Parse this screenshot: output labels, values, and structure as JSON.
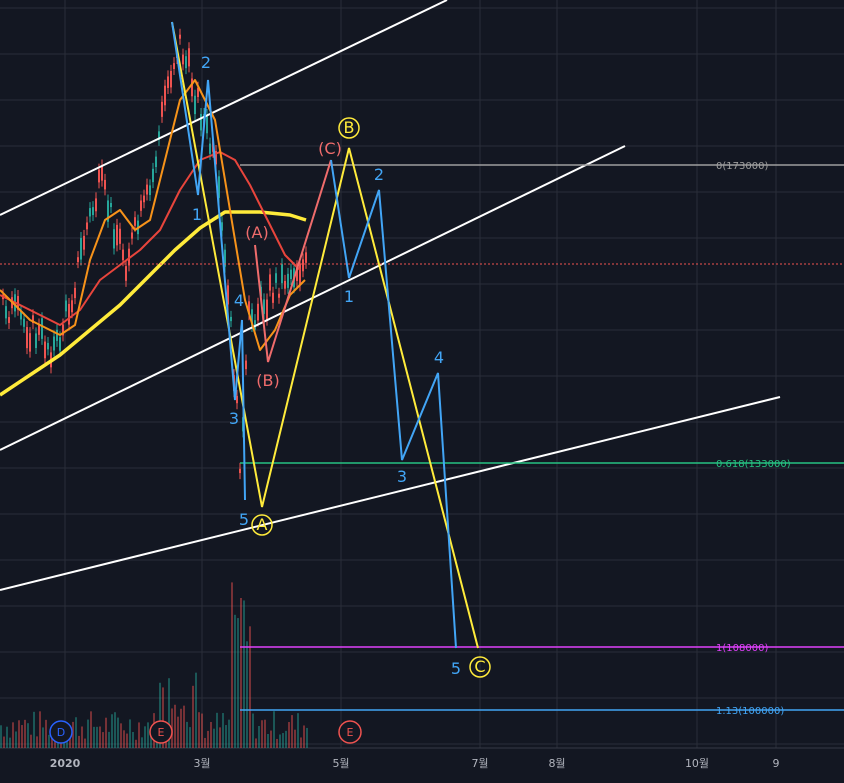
{
  "chart_data": {
    "type": "line",
    "title": "",
    "x_axis": {
      "tick_labels": [
        "2020",
        "3월",
        "5월",
        "7월",
        "8월",
        "10월",
        "9"
      ]
    },
    "colors": {
      "background": "#131722",
      "grid": "#2a2e39",
      "ma_fast": "#f7931a",
      "ma_mid": "#e8453c",
      "ma_slow": "#ffeb3b",
      "wave_abc": "#ffeb3b",
      "wave_sub": "#42a5f5",
      "wave_sub_abc": "#ef6c6c",
      "channel": "#ffffff",
      "candle_up": "#26a69a",
      "candle_down": "#ef5350"
    },
    "fib_levels": [
      {
        "label": "0(173000)",
        "color": "#9e9e9e"
      },
      {
        "label": "0.618(133000)",
        "color": "#26c281"
      },
      {
        "label": "1(108000)",
        "color": "#e040fb"
      },
      {
        "label": "1.13(100000)",
        "color": "#42a5f5"
      }
    ],
    "waves": {
      "abc": [
        {
          "label": "A",
          "color": "#ffeb3b"
        },
        {
          "label": "B",
          "color": "#ffeb3b"
        },
        {
          "label": "C",
          "color": "#ffeb3b"
        }
      ],
      "sub_abc": [
        {
          "label": "(A)",
          "color": "#ef6c6c"
        },
        {
          "label": "(B)",
          "color": "#ef6c6c"
        },
        {
          "label": "(C)",
          "color": "#ef6c6c"
        }
      ],
      "impulse_left": [
        {
          "label": "1"
        },
        {
          "label": "2"
        },
        {
          "label": "3"
        },
        {
          "label": "4"
        },
        {
          "label": "5"
        }
      ],
      "impulse_right": [
        {
          "label": "1"
        },
        {
          "label": "2"
        },
        {
          "label": "3"
        },
        {
          "label": "4"
        },
        {
          "label": "5"
        }
      ]
    },
    "event_markers": [
      {
        "label": "D",
        "color": "#2962ff"
      },
      {
        "label": "E",
        "color": "#ef5350"
      },
      {
        "label": "E",
        "color": "#ef5350"
      }
    ]
  }
}
